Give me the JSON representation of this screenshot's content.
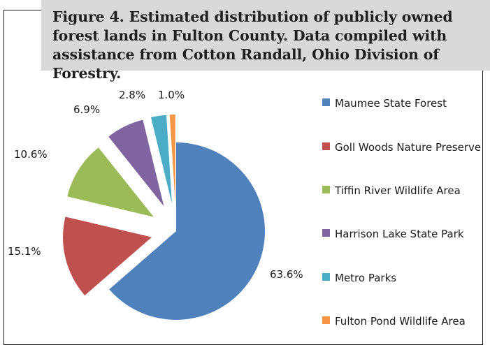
{
  "caption": "Figure 4. Estimated distribution of publicly owned forest lands in Fulton County. Data compiled with assistance from Cotton Randall, Ohio Division of Forestry.",
  "chart_data": {
    "type": "pie",
    "exploded": true,
    "start_angle_degrees": 0,
    "direction": "clockwise",
    "legend_position": "right",
    "slices": [
      {
        "label": "Maumee State Forest",
        "value": 63.6,
        "display": "63.6%",
        "color": "#4f81bd"
      },
      {
        "label": "Goll Woods Nature Preserve",
        "value": 15.1,
        "display": "15.1%",
        "color": "#c0504d"
      },
      {
        "label": "Tiffin River Wildlife Area",
        "value": 10.6,
        "display": "10.6%",
        "color": "#9bbb59"
      },
      {
        "label": "Harrison Lake State Park",
        "value": 6.9,
        "display": "6.9%",
        "color": "#8064a2"
      },
      {
        "label": "Metro Parks",
        "value": 2.8,
        "display": "2.8%",
        "color": "#4bacc6"
      },
      {
        "label": "Fulton Pond Wildlife Area",
        "value": 1.0,
        "display": "1.0%",
        "color": "#f79646"
      }
    ]
  }
}
